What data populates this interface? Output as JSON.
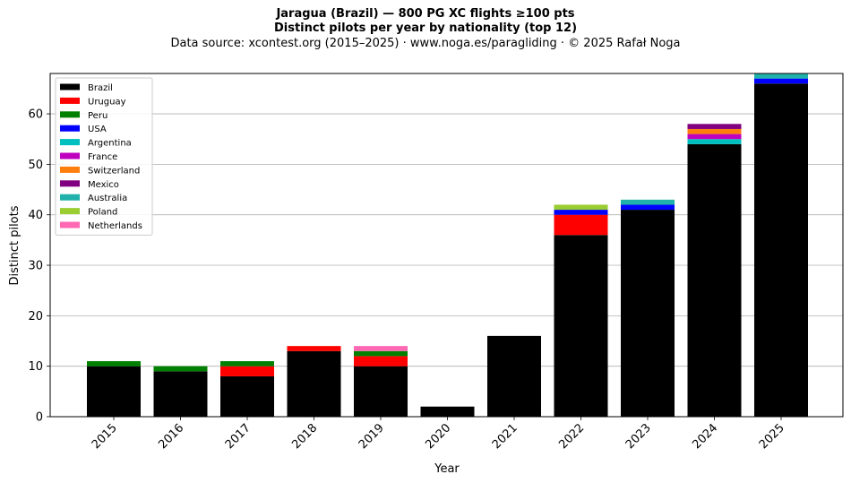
{
  "chart_data": {
    "type": "bar",
    "stacked": true,
    "title": "Jaragua (Brazil)  —  800 PG XC flights ≥100 pts",
    "subtitle": "Distinct pilots per year by nationality (top 12)",
    "source": "Data source: xcontest.org (2015–2025)  ·  www.noga.es/paragliding  ·  © 2025 Rafał Noga",
    "xlabel": "Year",
    "ylabel": "Distinct pilots",
    "ylim": [
      0,
      68
    ],
    "yticks": [
      0,
      10,
      20,
      30,
      40,
      50,
      60
    ],
    "grid": "horizontal",
    "legend_position": "top-left",
    "categories": [
      "2015",
      "2016",
      "2017",
      "2018",
      "2019",
      "2020",
      "2021",
      "2022",
      "2023",
      "2024",
      "2025"
    ],
    "series": [
      {
        "name": "Brazil",
        "color": "#000000",
        "values": [
          10,
          9,
          8,
          13,
          10,
          2,
          16,
          36,
          41,
          54,
          66
        ]
      },
      {
        "name": "Uruguay",
        "color": "#ff0000",
        "values": [
          0,
          0,
          2,
          1,
          2,
          0,
          0,
          4,
          0,
          0,
          0
        ]
      },
      {
        "name": "Peru",
        "color": "#008000",
        "values": [
          1,
          1,
          1,
          0,
          1,
          0,
          0,
          0,
          0,
          0,
          0
        ]
      },
      {
        "name": "USA",
        "color": "#0000ff",
        "values": [
          0,
          0,
          0,
          0,
          0,
          0,
          0,
          1,
          1,
          0,
          1
        ]
      },
      {
        "name": "Argentina",
        "color": "#00bfbf",
        "values": [
          0,
          0,
          0,
          0,
          0,
          0,
          0,
          0,
          0,
          1,
          0
        ]
      },
      {
        "name": "France",
        "color": "#bf00bf",
        "values": [
          0,
          0,
          0,
          0,
          0,
          0,
          0,
          0,
          0,
          1,
          0
        ]
      },
      {
        "name": "Switzerland",
        "color": "#ff7f0e",
        "values": [
          0,
          0,
          0,
          0,
          0,
          0,
          0,
          0,
          0,
          1,
          0
        ]
      },
      {
        "name": "Mexico",
        "color": "#800080",
        "values": [
          0,
          0,
          0,
          0,
          0,
          0,
          0,
          0,
          0,
          1,
          0
        ]
      },
      {
        "name": "Australia",
        "color": "#20b2aa",
        "values": [
          0,
          0,
          0,
          0,
          0,
          0,
          0,
          0,
          1,
          0,
          1
        ]
      },
      {
        "name": "Poland",
        "color": "#9acd32",
        "values": [
          0,
          0,
          0,
          0,
          0,
          0,
          0,
          1,
          0,
          0,
          0
        ]
      },
      {
        "name": "Netherlands",
        "color": "#ff69b4",
        "values": [
          0,
          0,
          0,
          0,
          1,
          0,
          0,
          0,
          0,
          0,
          0
        ]
      }
    ]
  }
}
